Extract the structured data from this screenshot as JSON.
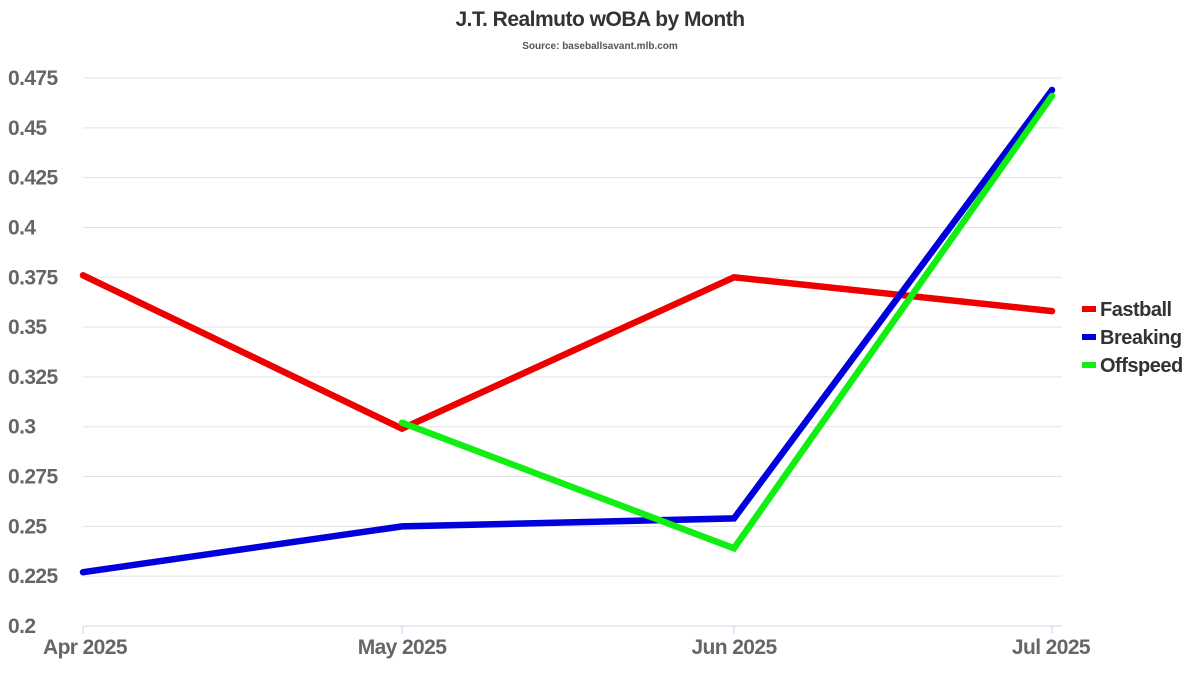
{
  "chart_data": {
    "type": "line",
    "title": "J.T. Realmuto wOBA by Month",
    "subtitle": "Source: baseballsavant.mlb.com",
    "xlabel": "",
    "ylabel": "",
    "categories": [
      "Apr 2025",
      "May 2025",
      "Jun 2025",
      "Jul 2025"
    ],
    "ylim": [
      0.2,
      0.475
    ],
    "yticks": [
      "0.2",
      "0.225",
      "0.25",
      "0.275",
      "0.3",
      "0.325",
      "0.35",
      "0.375",
      "0.4",
      "0.425",
      "0.45",
      "0.475"
    ],
    "grid": true,
    "legend_position": "right",
    "series": [
      {
        "name": "Fastball",
        "color": "#ee0000",
        "values": [
          0.376,
          0.299,
          0.375,
          0.358
        ]
      },
      {
        "name": "Breaking",
        "color": "#0000dd",
        "values": [
          0.227,
          0.25,
          0.254,
          0.469
        ]
      },
      {
        "name": "Offspeed",
        "color": "#11ee11",
        "values": [
          null,
          0.302,
          0.239,
          0.466
        ]
      }
    ]
  }
}
